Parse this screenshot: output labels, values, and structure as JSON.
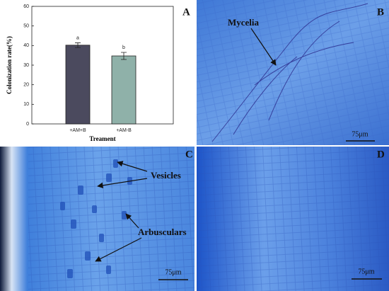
{
  "chart_data": {
    "type": "bar",
    "categories": [
      "+AM+B",
      "+AM-B"
    ],
    "values": [
      40.2,
      34.7
    ],
    "errors": [
      1.2,
      1.8
    ],
    "significance_labels": [
      "a",
      "b"
    ],
    "colors": [
      "#4b4a5e",
      "#8fb1a9"
    ],
    "ylim": [
      0,
      60
    ],
    "yticks": [
      0,
      10,
      20,
      30,
      40,
      50,
      60
    ],
    "ylabel": "Colonization rate(%)",
    "xlabel": "Treament",
    "panel_label": "A"
  },
  "panels": [
    {
      "label": "B",
      "annotations": [
        "Mycelia"
      ],
      "scale_bar": "75μm"
    },
    {
      "label": "C",
      "annotations": [
        "Vesicles",
        "Arbusculars"
      ],
      "scale_bar": "75μm"
    },
    {
      "label": "D",
      "scale_bar": "75μm"
    }
  ]
}
